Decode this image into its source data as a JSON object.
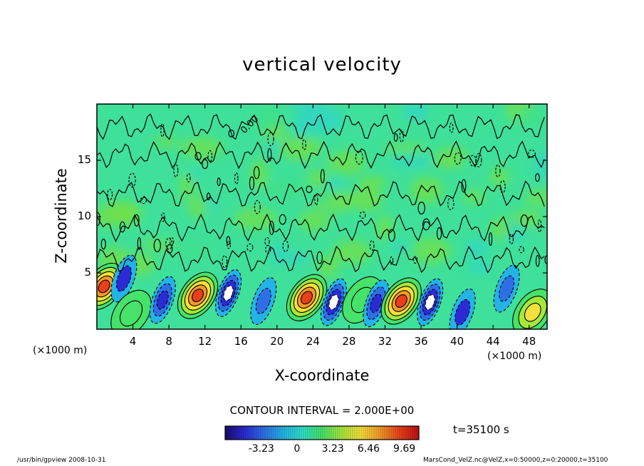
{
  "chart_data": {
    "type": "heatmap",
    "title": "vertical velocity",
    "xlabel": "X-coordinate",
    "ylabel": "Z-coordinate",
    "x_unit_label": "(×1000 m)",
    "x_ticks": [
      "4",
      "8",
      "12",
      "16",
      "20",
      "24",
      "28",
      "32",
      "36",
      "40",
      "44",
      "48"
    ],
    "y_ticks": [
      "5",
      "10",
      "15"
    ],
    "xlim": [
      0,
      50
    ],
    "ylim": [
      0,
      20
    ],
    "contour_interval_label": "CONTOUR INTERVAL = 2.000E+00",
    "contour_zero_label": "0.00",
    "colorbar_ticks": [
      "-3.23",
      "0",
      "3.23",
      "6.46",
      "9.69"
    ],
    "colorbar_range": [
      -6.5,
      11
    ],
    "time_label": "t=35100 s",
    "cells": [
      {
        "x": 0.8,
        "z": 3.8,
        "w": 9
      },
      {
        "x": 3.0,
        "z": 4.5,
        "w": -4
      },
      {
        "x": 3.8,
        "z": 1.4,
        "w": 3
      },
      {
        "x": 7.3,
        "z": 2.6,
        "w": -5
      },
      {
        "x": 11.2,
        "z": 3.0,
        "w": 10
      },
      {
        "x": 14.6,
        "z": 3.2,
        "w": -7
      },
      {
        "x": 18.5,
        "z": 2.5,
        "w": -3
      },
      {
        "x": 23.3,
        "z": 2.8,
        "w": 10
      },
      {
        "x": 26.3,
        "z": 2.4,
        "w": -7
      },
      {
        "x": 29.5,
        "z": 2.6,
        "w": 3
      },
      {
        "x": 31.0,
        "z": 2.3,
        "w": -5
      },
      {
        "x": 33.8,
        "z": 2.5,
        "w": 10
      },
      {
        "x": 37.0,
        "z": 2.4,
        "w": -7
      },
      {
        "x": 40.6,
        "z": 1.5,
        "w": -4
      },
      {
        "x": 45.5,
        "z": 3.6,
        "w": -3
      },
      {
        "x": 48.4,
        "z": 1.5,
        "w": 5
      }
    ],
    "colors": [
      "#1a0a6e",
      "#2b2bd6",
      "#2f6fe6",
      "#24b3e6",
      "#30e0c8",
      "#46e26a",
      "#a6e83a",
      "#f4e03a",
      "#f49a28",
      "#e8401a",
      "#c01010"
    ]
  },
  "footer": {
    "left": "/usr/bin/gpview  2008-10-31",
    "right": "MarsCond_VelZ.nc@VelZ,x=0:50000,z=0:20000,t=35100"
  }
}
